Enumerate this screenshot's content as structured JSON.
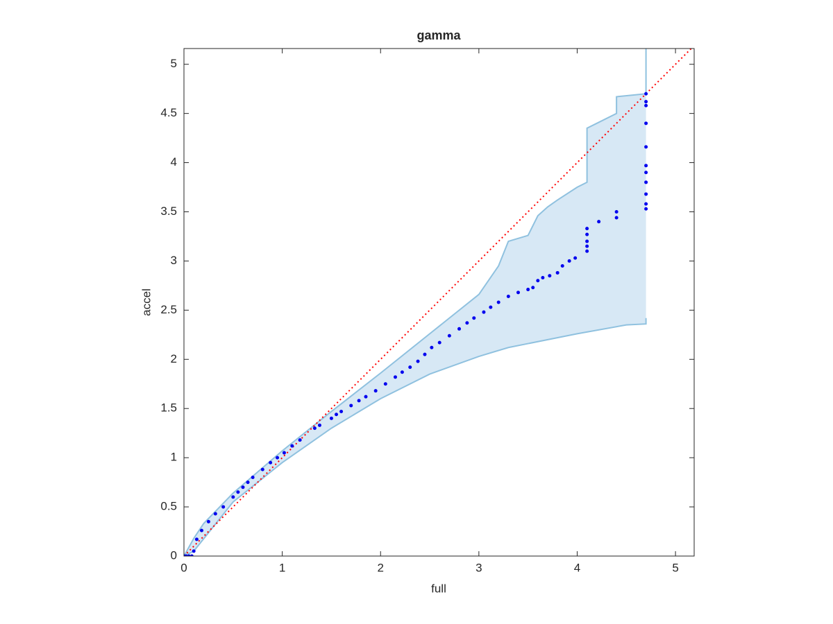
{
  "chart_data": {
    "type": "scatter",
    "title": "gamma",
    "xlabel": "full",
    "ylabel": "accel",
    "xlim": [
      0,
      5.19
    ],
    "ylim": [
      0,
      5.16
    ],
    "xticks": [
      0,
      1,
      2,
      3,
      4,
      5
    ],
    "yticks": [
      0,
      0.5,
      1,
      1.5,
      2,
      2.5,
      3,
      3.5,
      4,
      4.5,
      5
    ],
    "points": {
      "color": "#0000ee",
      "x": [
        0,
        0.02,
        0.05,
        0.08,
        0.1,
        0.13,
        0.18,
        0.25,
        0.32,
        0.4,
        0.5,
        0.55,
        0.6,
        0.65,
        0.7,
        0.8,
        0.88,
        0.95,
        1.02,
        1.1,
        1.18,
        1.33,
        1.38,
        1.5,
        1.55,
        1.6,
        1.7,
        1.78,
        1.85,
        1.95,
        2.05,
        2.15,
        2.22,
        2.3,
        2.38,
        2.45,
        2.52,
        2.6,
        2.7,
        2.8,
        2.88,
        2.95,
        3.05,
        3.12,
        3.2,
        3.3,
        3.4,
        3.5,
        3.55,
        3.6,
        3.65,
        3.72,
        3.8,
        3.85,
        3.92,
        3.98,
        4.1,
        4.1,
        4.1,
        4.1,
        4.1,
        4.22,
        4.4,
        4.4,
        4.7,
        4.7,
        4.7,
        4.7,
        4.7,
        4.7,
        4.7,
        4.7,
        4.7,
        4.7,
        4.7
      ],
      "y": [
        0,
        0,
        0,
        0,
        0.05,
        0.17,
        0.26,
        0.35,
        0.43,
        0.5,
        0.6,
        0.65,
        0.7,
        0.75,
        0.8,
        0.88,
        0.95,
        1.0,
        1.05,
        1.12,
        1.18,
        1.3,
        1.33,
        1.4,
        1.44,
        1.47,
        1.53,
        1.58,
        1.62,
        1.68,
        1.75,
        1.82,
        1.87,
        1.92,
        1.98,
        2.05,
        2.12,
        2.17,
        2.24,
        2.31,
        2.37,
        2.42,
        2.48,
        2.53,
        2.58,
        2.64,
        2.68,
        2.71,
        2.73,
        2.8,
        2.83,
        2.85,
        2.88,
        2.95,
        3.0,
        3.03,
        3.1,
        3.15,
        3.2,
        3.27,
        3.33,
        3.4,
        3.44,
        3.5,
        3.53,
        3.58,
        3.68,
        3.8,
        3.9,
        3.97,
        4.16,
        4.4,
        4.58,
        4.62,
        4.7
      ]
    },
    "band": {
      "color": "#8fc1df",
      "fill": "#d7e8f5",
      "upper": {
        "x": [
          0,
          0.1,
          0.2,
          0.5,
          1,
          1.5,
          2,
          2.5,
          3,
          3.2,
          3.3,
          3.5,
          3.6,
          3.7,
          3.8,
          4,
          4.1,
          4.1,
          4.2,
          4.4,
          4.4,
          4.7,
          4.7
        ],
        "y": [
          0,
          0.18,
          0.33,
          0.64,
          1.07,
          1.47,
          1.86,
          2.26,
          2.66,
          2.95,
          3.2,
          3.26,
          3.46,
          3.55,
          3.62,
          3.75,
          3.8,
          4.35,
          4.4,
          4.5,
          4.67,
          4.7,
          5.16
        ]
      },
      "lower": {
        "x": [
          0,
          0.1,
          0.5,
          1,
          1.5,
          2,
          2.5,
          3,
          3.3,
          3.5,
          4,
          4.5,
          4.7,
          4.7
        ],
        "y": [
          0,
          0.05,
          0.55,
          0.95,
          1.3,
          1.6,
          1.85,
          2.03,
          2.12,
          2.16,
          2.26,
          2.35,
          2.36,
          2.42
        ]
      }
    },
    "reference": {
      "color": "#ff0000",
      "dashed": true,
      "x": [
        0,
        5.19
      ],
      "y": [
        0,
        5.19
      ]
    }
  }
}
